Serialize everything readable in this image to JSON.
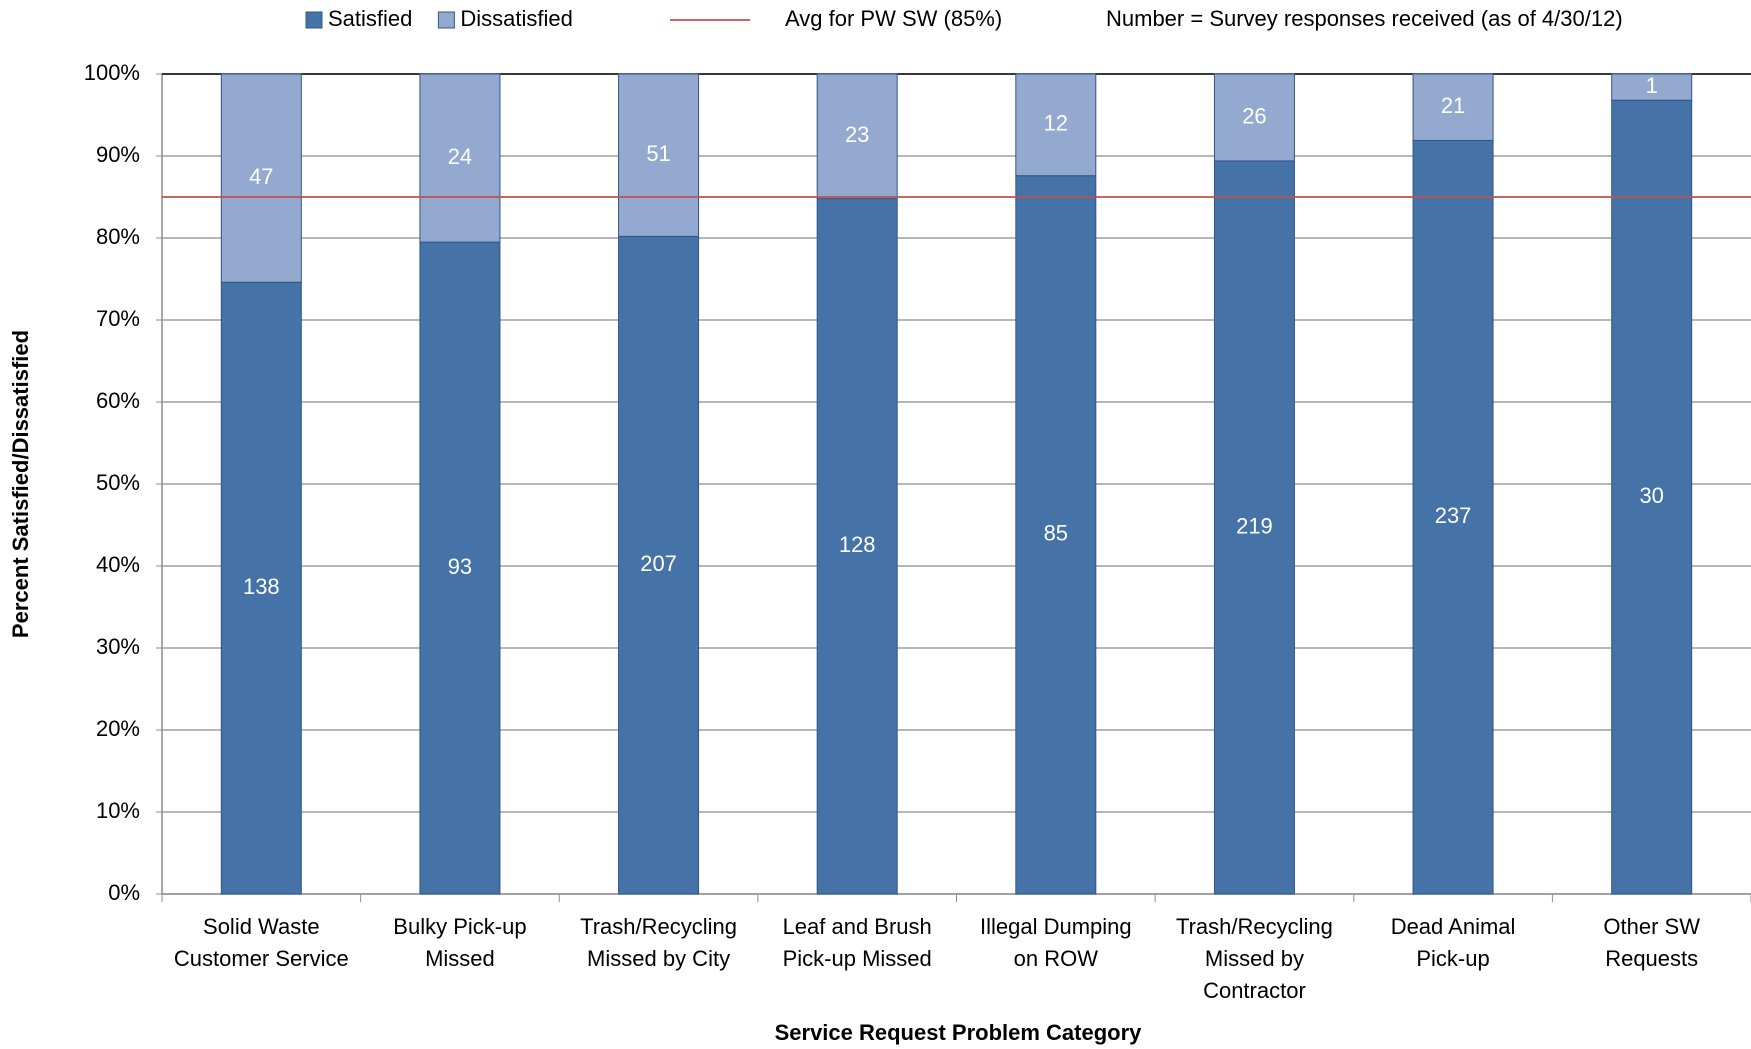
{
  "chart_data": {
    "type": "stacked_bar_100",
    "x_label": "Service Request Problem Category",
    "y_label": "Percent Satisfied/Dissatisfied",
    "note": "Number = Survey responses received (as of 4/30/12)",
    "categories": [
      [
        "Solid Waste",
        "Customer Service"
      ],
      [
        "Bulky Pick-up",
        "Missed"
      ],
      [
        "Trash/Recycling",
        "Missed by City"
      ],
      [
        "Leaf and Brush",
        "Pick-up Missed"
      ],
      [
        "Illegal Dumping",
        "on ROW"
      ],
      [
        "Trash/Recycling",
        "Missed by",
        "Contractor"
      ],
      [
        "Dead Animal",
        "Pick-up"
      ],
      [
        "Other SW",
        "Requests"
      ]
    ],
    "series": [
      {
        "name": "Satisfied",
        "color": "#4572a7",
        "values": [
          74.6,
          79.5,
          80.2,
          84.8,
          87.6,
          89.4,
          91.9,
          96.8
        ],
        "counts": [
          138,
          93,
          207,
          128,
          85,
          219,
          237,
          30
        ]
      },
      {
        "name": "Dissatisfied",
        "color": "#93a9cf",
        "values": [
          25.4,
          20.5,
          19.8,
          15.2,
          12.4,
          10.6,
          8.1,
          3.2
        ],
        "counts": [
          47,
          24,
          51,
          23,
          12,
          26,
          21,
          1
        ]
      }
    ],
    "reference_line": {
      "value": 85,
      "label": "Avg for PW SW (85%)",
      "color": "#c0504d"
    },
    "ylim": [
      0,
      100
    ],
    "yticks": [
      {
        "value": 0,
        "label": "0%"
      },
      {
        "value": 10,
        "label": "10%"
      },
      {
        "value": 20,
        "label": "20%"
      },
      {
        "value": 30,
        "label": "30%"
      },
      {
        "value": 40,
        "label": "40%"
      },
      {
        "value": 50,
        "label": "50%"
      },
      {
        "value": 60,
        "label": "60%"
      },
      {
        "value": 70,
        "label": "70%"
      },
      {
        "value": 80,
        "label": "80%"
      },
      {
        "value": 90,
        "label": "90%"
      },
      {
        "value": 100,
        "label": "100%"
      }
    ],
    "grid": true
  }
}
